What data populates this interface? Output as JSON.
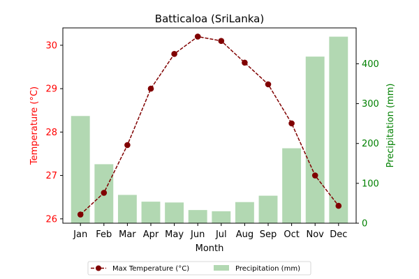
{
  "chart_data": {
    "type": "bar+line",
    "title": "Batticaloa (SriLanka)",
    "xlabel": "Month",
    "categories": [
      "Jan",
      "Feb",
      "Mar",
      "Apr",
      "May",
      "Jun",
      "Jul",
      "Aug",
      "Sep",
      "Oct",
      "Nov",
      "Dec"
    ],
    "series": [
      {
        "name": "Max Temperature (°C)",
        "kind": "line",
        "axis": "left",
        "color": "#800000",
        "values": [
          26.1,
          26.6,
          27.7,
          29.0,
          29.8,
          30.2,
          30.1,
          29.6,
          29.1,
          28.2,
          27.0,
          26.3
        ]
      },
      {
        "name": "Precipitation (mm)",
        "kind": "bar",
        "axis": "right",
        "color": "#b2d8b2",
        "values": [
          269,
          148,
          71,
          54,
          52,
          33,
          30,
          53,
          69,
          188,
          418,
          468
        ]
      }
    ],
    "y_left": {
      "label": "Temperature (°C)",
      "color": "#ff0000",
      "ylim": [
        25.9,
        30.4
      ],
      "ticks": [
        26,
        27,
        28,
        29,
        30
      ]
    },
    "y_right": {
      "label": "Precipitation (mm)",
      "color": "#008000",
      "ylim": [
        0,
        490
      ],
      "ticks": [
        0,
        100,
        200,
        300,
        400
      ]
    },
    "legend": {
      "placement": "bottom-center",
      "entries": [
        "Max Temperature (°C)",
        "Precipitation (mm)"
      ]
    },
    "grid": false
  }
}
